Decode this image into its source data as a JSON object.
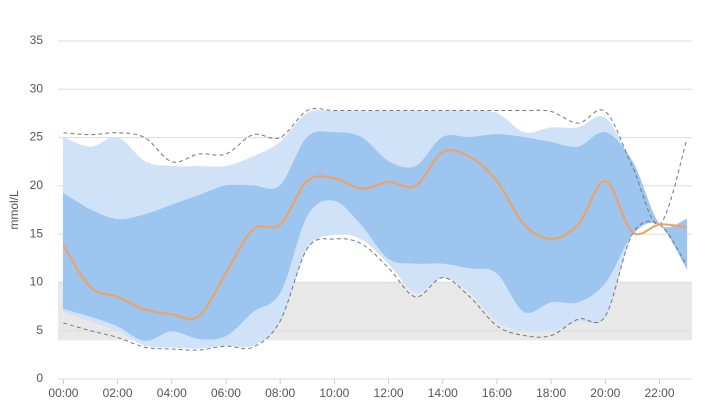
{
  "chart_data": {
    "type": "line",
    "ylabel": "mmol/L",
    "x": [
      0,
      1,
      2,
      3,
      4,
      5,
      6,
      7,
      8,
      9,
      10,
      11,
      12,
      13,
      14,
      15,
      16,
      17,
      18,
      19,
      20,
      21,
      22,
      23
    ],
    "xlim": [
      -0.2,
      23.2
    ],
    "xticks": [
      {
        "value": 0,
        "label": "00:00"
      },
      {
        "value": 2,
        "label": "02:00"
      },
      {
        "value": 4,
        "label": "04:00"
      },
      {
        "value": 6,
        "label": "06:00"
      },
      {
        "value": 8,
        "label": "08:00"
      },
      {
        "value": 10,
        "label": "10:00"
      },
      {
        "value": 12,
        "label": "12:00"
      },
      {
        "value": 14,
        "label": "14:00"
      },
      {
        "value": 16,
        "label": "16:00"
      },
      {
        "value": 18,
        "label": "18:00"
      },
      {
        "value": 20,
        "label": "20:00"
      },
      {
        "value": 22,
        "label": "22:00"
      }
    ],
    "ylim": [
      0,
      35
    ],
    "yticks": [
      0,
      5,
      10,
      15,
      20,
      25,
      30,
      35
    ],
    "grid": true,
    "target_range": {
      "low": 4,
      "high": 10,
      "color": "#e8e8e8"
    },
    "bands": [
      {
        "color": "#cfe2f7",
        "high": [
          25,
          24,
          25,
          22.5,
          22,
          22,
          22,
          23,
          24.5,
          27.5,
          27.7,
          27.7,
          27.7,
          27.7,
          27.7,
          27.7,
          27.5,
          25.5,
          26,
          26,
          27,
          22,
          16,
          16.5
        ],
        "low": [
          7,
          6,
          5,
          3.5,
          3.3,
          3.2,
          3.5,
          3.5,
          6,
          13.5,
          15,
          14.5,
          12,
          9,
          10.5,
          9,
          6,
          5,
          5,
          6,
          6.5,
          15,
          16,
          11.5
        ]
      },
      {
        "color": "#9cc5f0",
        "high": [
          19.2,
          17.5,
          16.5,
          17,
          18,
          19,
          20,
          20,
          20,
          25,
          25.5,
          25,
          22.5,
          22,
          25,
          25,
          25.3,
          25,
          24.5,
          24,
          25.5,
          22.5,
          16,
          16.5
        ],
        "low": [
          7.3,
          6.5,
          5.5,
          4,
          5,
          4.2,
          4.5,
          7,
          9,
          17,
          18.5,
          16,
          12.5,
          12,
          12,
          11.5,
          11,
          7,
          8,
          8,
          10,
          15,
          16,
          11.5
        ]
      }
    ],
    "series": [
      {
        "color": "#777777",
        "dash": true,
        "values": [
          25.5,
          25.3,
          25.5,
          25,
          22.5,
          23.3,
          23.3,
          25.3,
          25,
          27.8,
          27.8,
          27.8,
          27.8,
          27.8,
          27.8,
          27.8,
          27.8,
          27.8,
          27.7,
          26.5,
          27.7,
          22,
          16,
          24.7
        ]
      },
      {
        "color": "#777777",
        "dash": true,
        "values": [
          5.8,
          5,
          4.3,
          3.3,
          3.1,
          3,
          3.4,
          3.3,
          6,
          13.5,
          14.5,
          14,
          11.5,
          8.5,
          10.5,
          8.5,
          5.5,
          4.5,
          4.5,
          6.2,
          6.5,
          15,
          16,
          11.8
        ]
      },
      {
        "color": "#f5a05a",
        "dash": false,
        "values": [
          13.8,
          9.5,
          8.5,
          7.2,
          6.7,
          6.5,
          11,
          15.5,
          16,
          20.5,
          20.8,
          19.7,
          20.4,
          20,
          23.5,
          23,
          20.5,
          16,
          14.5,
          16,
          20.5,
          15.2,
          16,
          15.7
        ]
      }
    ]
  }
}
